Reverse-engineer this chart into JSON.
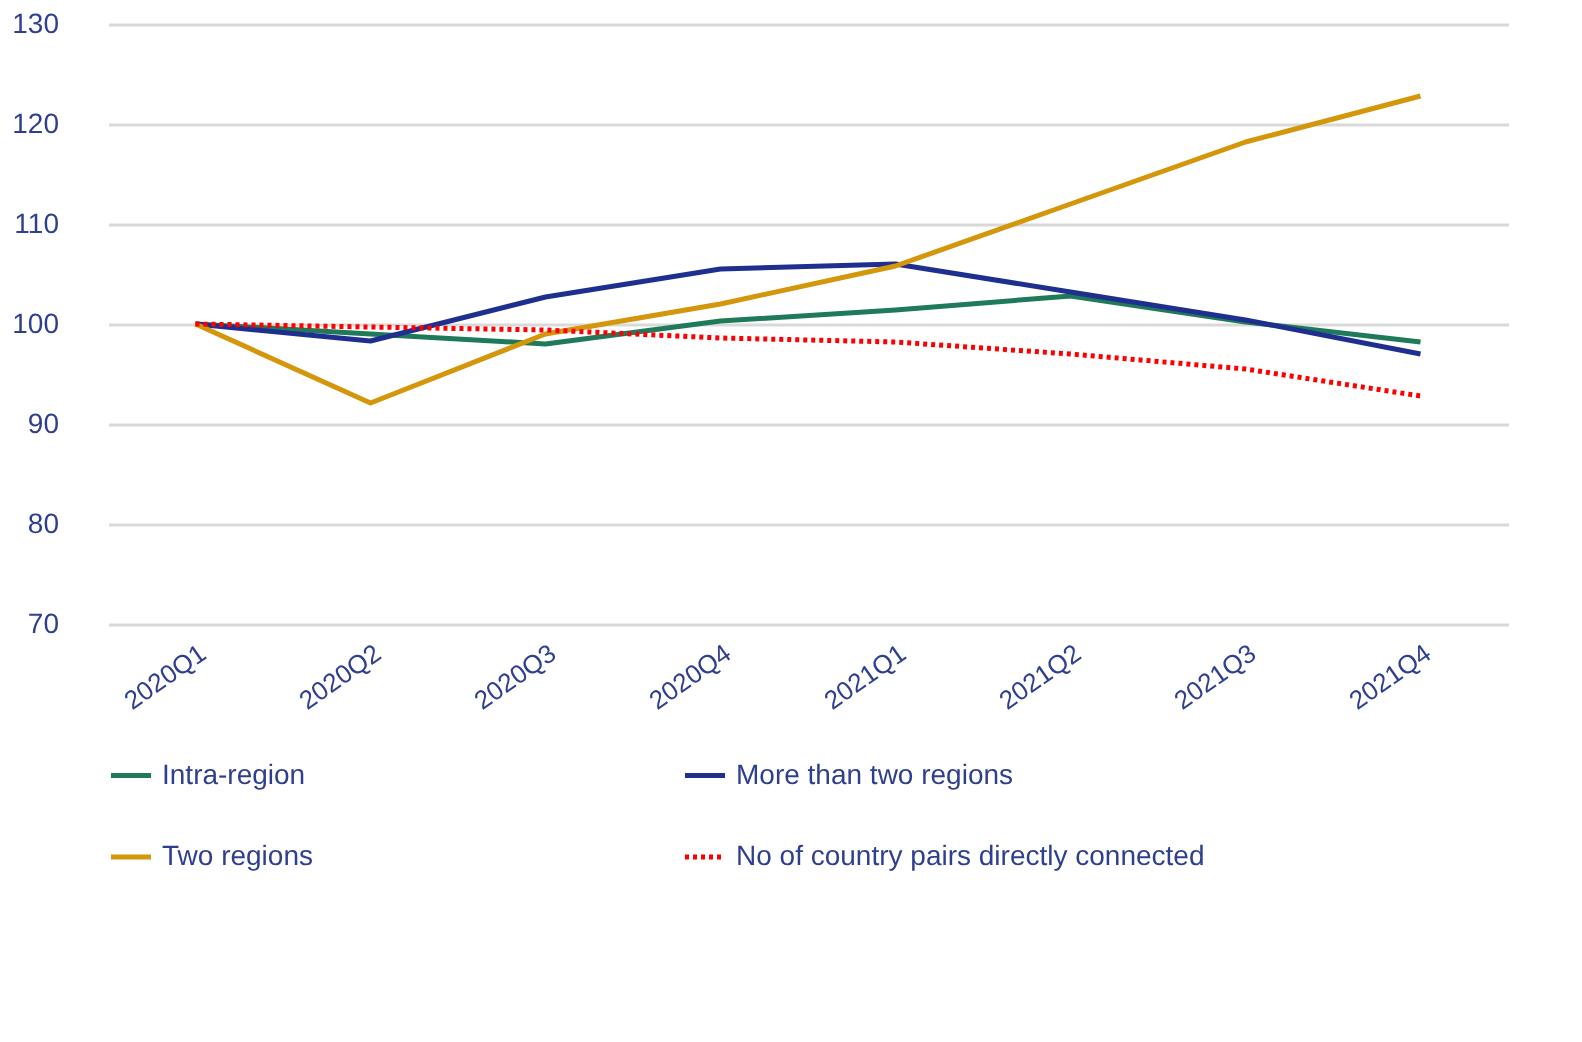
{
  "chart_data": {
    "type": "line",
    "categories": [
      "2020Q1",
      "2020Q2",
      "2020Q3",
      "2020Q4",
      "2021Q1",
      "2021Q2",
      "2021Q3",
      "2021Q4"
    ],
    "series": [
      {
        "name": "Intra-region",
        "color": "#1f7a5a",
        "line_style": "solid",
        "values": [
          100,
          99,
          98,
          100.3,
          101.4,
          102.8,
          100.2,
          98.2
        ]
      },
      {
        "name": "More than two regions",
        "color": "#1f2f8f",
        "line_style": "solid",
        "values": [
          100,
          98.3,
          102.7,
          105.5,
          106,
          103.2,
          100.4,
          97
        ]
      },
      {
        "name": "Two regions",
        "color": "#d4960a",
        "line_style": "solid",
        "values": [
          100,
          92.1,
          99,
          102,
          105.8,
          112,
          118.2,
          122.8
        ]
      },
      {
        "name": "No of country pairs directly connected",
        "color": "#ff0000",
        "line_style": "dotted",
        "values": [
          100,
          99.7,
          99.4,
          98.6,
          98.2,
          97,
          95.5,
          92.8
        ]
      }
    ],
    "ylim": [
      70,
      130
    ],
    "yticks": [
      70,
      80,
      90,
      100,
      110,
      120,
      130
    ],
    "grid": "y",
    "legend": "bottom",
    "marker": "none"
  }
}
